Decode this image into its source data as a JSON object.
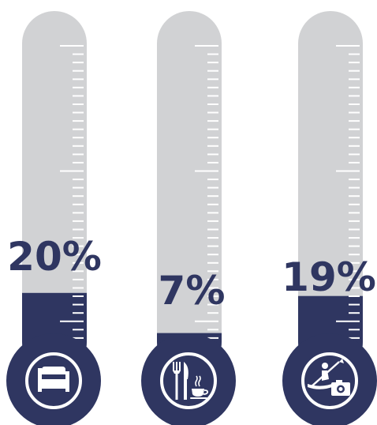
{
  "colors": {
    "navy": "#2f3661",
    "tube": "#d1d2d4",
    "tick": "#ffffff",
    "background": "#ffffff"
  },
  "chart_data": {
    "type": "bar",
    "style": "thermometer",
    "categories": [
      "accommodation",
      "food-and-drink",
      "activities"
    ],
    "values": [
      20,
      7,
      19
    ],
    "value_labels": [
      "20%",
      "7%",
      "19%"
    ],
    "icons": [
      "bed-icon",
      "fork-knife-coffee-icon",
      "kayak-camera-icon"
    ],
    "ylim": [
      0,
      100
    ],
    "title": "",
    "xlabel": "",
    "ylabel": ""
  }
}
